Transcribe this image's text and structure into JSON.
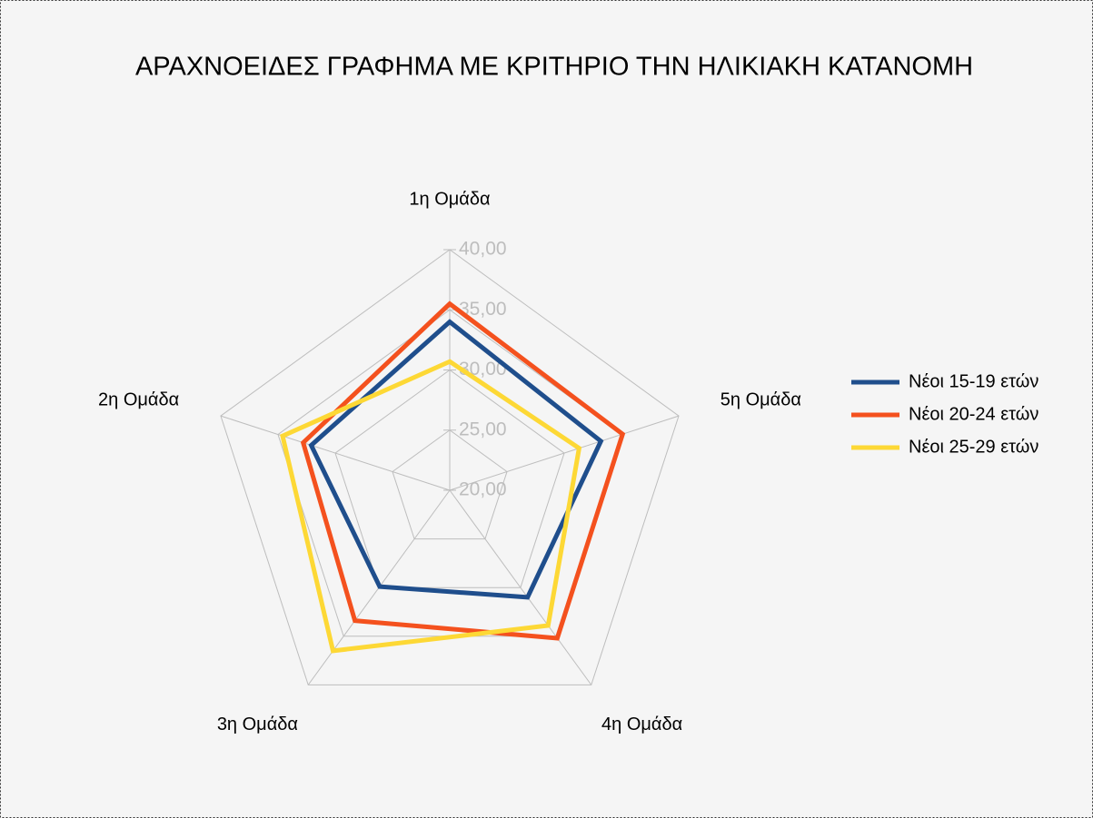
{
  "chart_data": {
    "type": "radar",
    "title": "ΑΡΑΧΝΟΕΙΔΕΣ ΓΡΑΦΗΜΑ ΜΕ ΚΡΙΤΗΡΙΟ ΤΗΝ ΗΛΙΚΙΑΚΗ ΚΑΤΑΝΟΜΗ",
    "categories": [
      "1η Ομάδα",
      "2η Ομάδα",
      "3η Ομάδα",
      "4η Ομάδα",
      "5η Ομάδα"
    ],
    "series": [
      {
        "name": "Νέοι 15-19 ετών",
        "color": "#1f4e8c",
        "values": [
          34.0,
          32.1,
          29.9,
          31.0,
          33.2
        ]
      },
      {
        "name": "Νέοι 20-24 ετών",
        "color": "#f4511e",
        "values": [
          35.5,
          32.8,
          33.4,
          35.2,
          35.1
        ]
      },
      {
        "name": "Νέοι 25-29 ετών",
        "color": "#fdd835",
        "values": [
          30.7,
          34.6,
          36.5,
          33.9,
          31.3
        ]
      }
    ],
    "ylim": [
      20,
      40
    ],
    "yticks": [
      {
        "value": 20,
        "label": "20,00"
      },
      {
        "value": 25,
        "label": "25,00"
      },
      {
        "value": 30,
        "label": "30,00"
      },
      {
        "value": 35,
        "label": "35,00"
      },
      {
        "value": 40,
        "label": "40,00"
      }
    ],
    "grid": true,
    "legend": "right"
  }
}
